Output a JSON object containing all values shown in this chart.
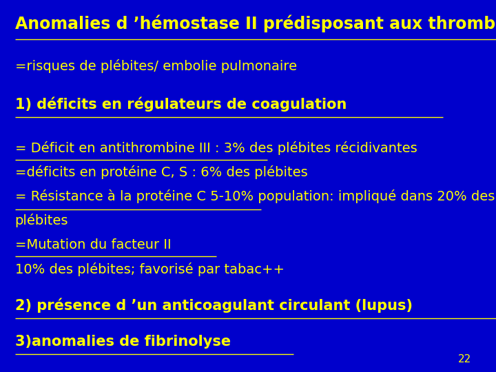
{
  "background_color": "#0000cc",
  "text_color_yellow": "#ffff00",
  "title": "Anomalies d ’hémostase II prédisposant aux thromboses",
  "subtitle": "=risques de plébites/ embolie pulmonaire",
  "section1": "1) déficits en régulateurs de coagulation",
  "line1_underline": "= Déficit en antithrombine III",
  "line1_rest": " : 3% des plébites récidivantes",
  "line2": "=déficits en protéine C, S : 6% des plébites",
  "line3_underline": "= Résistance à la protéine C",
  "line3_rest": " 5-10% population: impliqué dans 20% des",
  "line3_cont": "plébites",
  "line4_underline": "=Mutation du facteur II",
  "line5": "10% des plébites; favorisé par tabac++",
  "section2": "2) présence d ’un anticoagulant circulant (lupus)",
  "section3": "3)anomalies de fibrinolyse",
  "page_number": "22",
  "title_fontsize": 17,
  "body_fontsize": 14,
  "section_fontsize": 15
}
